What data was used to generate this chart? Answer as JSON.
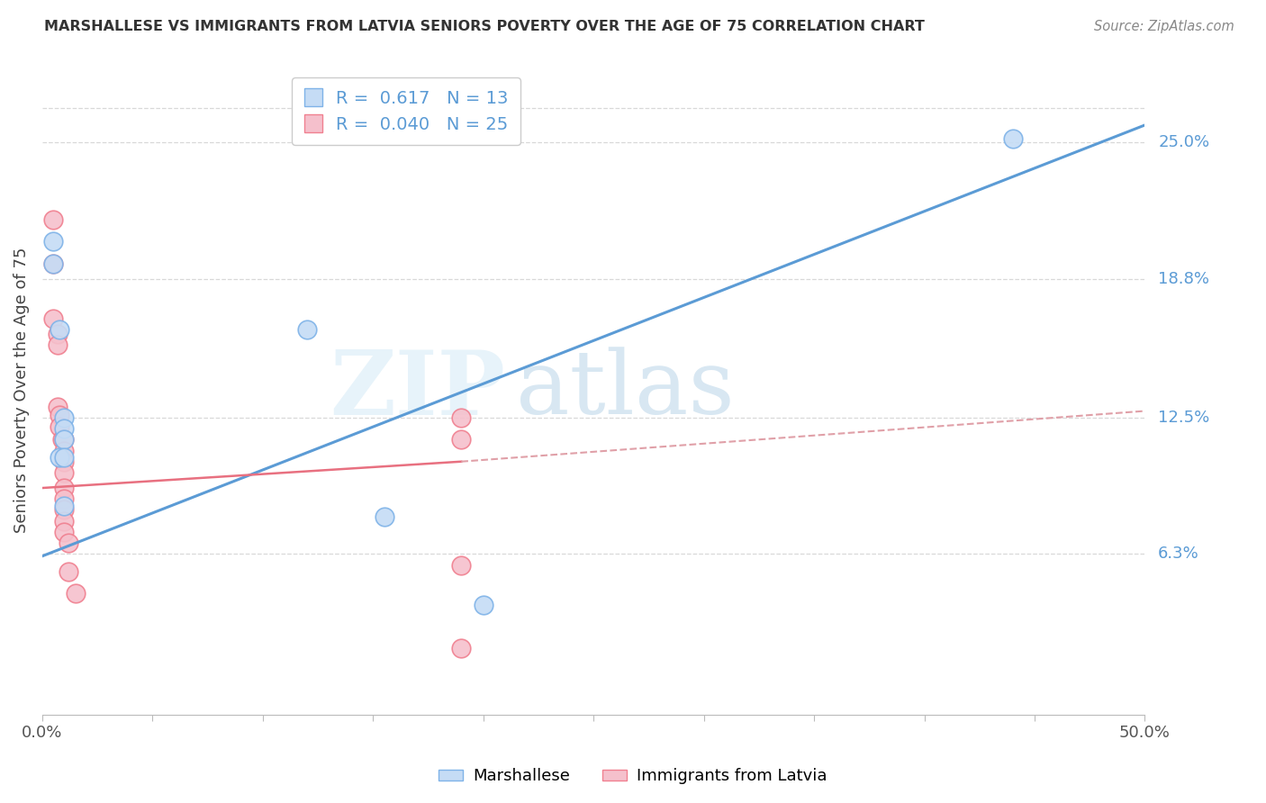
{
  "title": "MARSHALLESE VS IMMIGRANTS FROM LATVIA SENIORS POVERTY OVER THE AGE OF 75 CORRELATION CHART",
  "source": "Source: ZipAtlas.com",
  "ylabel": "Seniors Poverty Over the Age of 75",
  "xlim": [
    0.0,
    0.5
  ],
  "ylim": [
    -0.01,
    0.285
  ],
  "xticks": [
    0.0,
    0.05,
    0.1,
    0.15,
    0.2,
    0.25,
    0.3,
    0.35,
    0.4,
    0.45,
    0.5
  ],
  "xticklabels": [
    "0.0%",
    "",
    "",
    "",
    "",
    "",
    "",
    "",
    "",
    "",
    "50.0%"
  ],
  "ytick_labels_right": [
    "25.0%",
    "18.8%",
    "12.5%",
    "6.3%"
  ],
  "ytick_vals_right": [
    0.25,
    0.188,
    0.125,
    0.063
  ],
  "background_color": "#ffffff",
  "watermark_zip": "ZIP",
  "watermark_atlas": "atlas",
  "grid_color": "#d8d8d8",
  "marshallese_color": "#c5dcf5",
  "latvia_color": "#f5c0cc",
  "marshallese_edge_color": "#7fb3e8",
  "latvia_edge_color": "#f08090",
  "marshallese_line_color": "#5b9bd5",
  "latvia_line_color": "#e87080",
  "latvia_dash_color": "#e0a0a8",
  "marshallese_R": 0.617,
  "marshallese_N": 13,
  "latvia_R": 0.04,
  "latvia_N": 25,
  "marshallese_x": [
    0.005,
    0.005,
    0.008,
    0.008,
    0.01,
    0.01,
    0.01,
    0.01,
    0.01,
    0.12,
    0.155,
    0.2,
    0.44
  ],
  "marshallese_y": [
    0.195,
    0.205,
    0.165,
    0.107,
    0.125,
    0.12,
    0.115,
    0.107,
    0.085,
    0.165,
    0.08,
    0.04,
    0.252
  ],
  "latvia_x": [
    0.005,
    0.005,
    0.005,
    0.007,
    0.007,
    0.007,
    0.008,
    0.008,
    0.009,
    0.01,
    0.01,
    0.01,
    0.01,
    0.01,
    0.01,
    0.01,
    0.01,
    0.01,
    0.012,
    0.012,
    0.015,
    0.19,
    0.19,
    0.19,
    0.19
  ],
  "latvia_y": [
    0.215,
    0.195,
    0.17,
    0.163,
    0.158,
    0.13,
    0.126,
    0.121,
    0.115,
    0.115,
    0.11,
    0.105,
    0.1,
    0.093,
    0.088,
    0.083,
    0.078,
    0.073,
    0.068,
    0.055,
    0.045,
    0.125,
    0.115,
    0.058,
    0.02
  ],
  "marshallese_line_x": [
    0.0,
    0.5
  ],
  "marshallese_line_y": [
    0.062,
    0.258
  ],
  "latvia_solid_line_x": [
    0.0,
    0.19
  ],
  "latvia_solid_line_y": [
    0.093,
    0.105
  ],
  "latvia_dash_line_x": [
    0.19,
    0.5
  ],
  "latvia_dash_line_y": [
    0.105,
    0.128
  ]
}
